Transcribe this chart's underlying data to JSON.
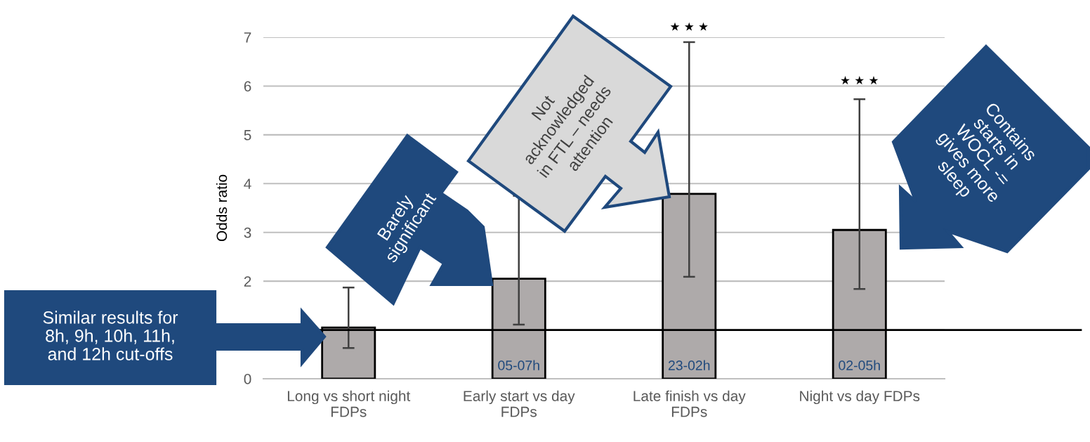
{
  "chart_data": {
    "type": "bar",
    "ylabel": "Odds ratio",
    "categories": [
      "Long vs short night\nFDPs",
      "Early start vs day\nFDPs",
      "Late finish vs day\nFDPs",
      "Night vs day FDPs"
    ],
    "values": [
      1.05,
      2.05,
      3.79,
      3.05
    ],
    "color": "#aeaaaa",
    "errors": [
      [
        0.63,
        1.87
      ],
      [
        1.11,
        3.75
      ],
      [
        2.09,
        6.9
      ],
      [
        1.84,
        5.73
      ]
    ],
    "ylim": [
      0,
      7
    ],
    "yticks": [
      0,
      {
        "value": 1,
        "label": null
      },
      2,
      3,
      4,
      5,
      6,
      7
    ],
    "grid": "y",
    "ref_lines": [
      {
        "axis": "y",
        "value": 1,
        "color": "#000000"
      }
    ],
    "annotations": [
      "Similar results for\n8h, 9h, 10h, 11h,\nand 12h cut-offs",
      "Barely\nsignificant",
      "Not\nacknowledged\nin FTL – needs\nattention",
      "Contains\nstarts in\nWOCL -=\ngives more\nsleep",
      "05-07h",
      "23-02h",
      "02-05h",
      "★ ★ ★",
      "★ ★ ★"
    ]
  }
}
